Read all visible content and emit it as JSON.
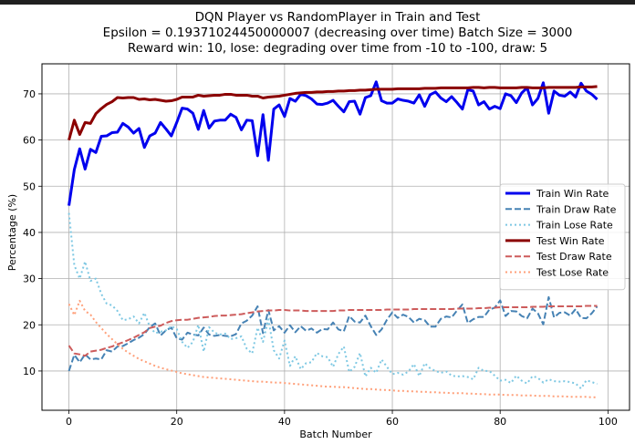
{
  "chart_data": {
    "type": "line",
    "title_lines": [
      "DQN Player vs RandomPlayer in Train and Test",
      "Epsilon = 0.19371024450000007 (decreasing over time) Batch Size = 3000",
      "Reward win: 10, lose: degrading over time from -10 to -100, draw: 5"
    ],
    "xlabel": "Batch Number",
    "ylabel": "Percentage (%)",
    "xlim": [
      -5,
      104
    ],
    "ylim": [
      1.5,
      76.5
    ],
    "xticks": [
      0,
      20,
      40,
      60,
      80,
      100
    ],
    "yticks": [
      10,
      20,
      30,
      40,
      50,
      60,
      70
    ],
    "grid": true,
    "legend_position": "center-right",
    "series": [
      {
        "name": "Train Win Rate",
        "color": "#0000ee",
        "style": "solid",
        "width": 3,
        "values": [
          45.8,
          53.6,
          58.1,
          53.7,
          58.0,
          57.3,
          60.8,
          60.9,
          61.6,
          61.7,
          63.6,
          62.8,
          61.5,
          62.5,
          58.4,
          60.9,
          61.5,
          63.8,
          62.4,
          60.9,
          63.8,
          66.9,
          66.7,
          65.8,
          62.3,
          66.4,
          62.6,
          64.1,
          64.3,
          64.3,
          65.6,
          64.9,
          62.2,
          64.3,
          64.2,
          56.6,
          65.5,
          55.6,
          66.7,
          67.6,
          65.1,
          69.0,
          68.4,
          69.9,
          69.6,
          68.9,
          67.8,
          67.7,
          68.0,
          68.6,
          67.3,
          66.1,
          68.3,
          68.4,
          65.6,
          69.2,
          69.6,
          72.6,
          68.5,
          68.0,
          68.0,
          68.9,
          68.6,
          68.4,
          68.0,
          69.8,
          67.3,
          69.8,
          70.4,
          69.1,
          68.3,
          69.4,
          68.1,
          66.7,
          70.9,
          70.6,
          67.6,
          68.3,
          66.7,
          67.3,
          66.8,
          70.0,
          69.6,
          68.1,
          70.2,
          71.3,
          67.6,
          69.0,
          72.4,
          65.8,
          70.6,
          69.7,
          69.5,
          70.4,
          69.3,
          72.3,
          70.6,
          69.9,
          68.8
        ]
      },
      {
        "name": "Train Draw Rate",
        "color": "#4682b4",
        "style": "dashed",
        "width": 2,
        "values": [
          10.0,
          13.5,
          11.9,
          13.6,
          12.5,
          12.7,
          12.5,
          14.5,
          14.2,
          15.3,
          15.4,
          16.0,
          16.7,
          17.2,
          18.0,
          19.5,
          20.3,
          17.7,
          18.8,
          19.4,
          17.1,
          16.8,
          18.3,
          17.9,
          17.7,
          19.4,
          17.9,
          17.6,
          17.8,
          17.6,
          17.5,
          18.0,
          20.3,
          20.9,
          22.0,
          24.0,
          18.2,
          23.2,
          18.8,
          19.7,
          18.3,
          19.9,
          18.4,
          19.7,
          18.7,
          19.2,
          18.3,
          19.1,
          19.0,
          20.5,
          19.0,
          18.6,
          21.9,
          20.7,
          20.5,
          22.0,
          19.7,
          17.8,
          19.0,
          21.1,
          22.7,
          21.5,
          22.2,
          21.7,
          20.5,
          21.3,
          21.0,
          19.6,
          19.6,
          21.3,
          21.8,
          21.6,
          23.1,
          24.4,
          20.4,
          21.2,
          21.7,
          21.7,
          23.3,
          23.7,
          25.3,
          21.9,
          23.0,
          22.9,
          21.9,
          21.4,
          23.5,
          22.5,
          20.1,
          26.0,
          21.6,
          22.6,
          22.7,
          22.0,
          23.4,
          21.5,
          21.4,
          22.5,
          24.0
        ]
      },
      {
        "name": "Train Lose Rate",
        "color": "#7ec8e3",
        "style": "dotted",
        "width": 2,
        "values": [
          44.2,
          32.9,
          30.0,
          33.7,
          29.5,
          30.0,
          26.7,
          24.6,
          24.2,
          23.0,
          21.0,
          21.2,
          21.8,
          20.3,
          22.6,
          19.6,
          18.2,
          18.5,
          18.8,
          19.7,
          19.1,
          16.3,
          15.0,
          16.3,
          20.0,
          14.2,
          19.5,
          18.3,
          17.9,
          18.1,
          16.9,
          17.1,
          17.5,
          14.8,
          13.8,
          19.4,
          16.3,
          21.2,
          14.5,
          12.7,
          16.6,
          11.1,
          13.2,
          10.4,
          11.7,
          11.9,
          13.9,
          13.2,
          13.0,
          10.9,
          13.7,
          15.3,
          9.8,
          10.9,
          13.9,
          8.8,
          10.7,
          9.6,
          12.5,
          10.9,
          9.3,
          9.6,
          9.2,
          9.9,
          11.5,
          8.9,
          11.7,
          10.6,
          10.0,
          9.6,
          9.9,
          9.0,
          8.8,
          8.9,
          8.7,
          8.2,
          10.7,
          10.0,
          10.0,
          9.0,
          7.9,
          8.1,
          7.4,
          9.0,
          7.9,
          7.3,
          8.9,
          8.5,
          7.5,
          8.2,
          7.8,
          7.7,
          7.8,
          7.6,
          7.3,
          6.2,
          8.0,
          7.6,
          7.2
        ]
      },
      {
        "name": "Test Win Rate",
        "color": "#8b0000",
        "style": "solid",
        "width": 3,
        "values": [
          60.0,
          64.3,
          61.2,
          63.8,
          63.6,
          65.7,
          66.8,
          67.7,
          68.3,
          69.2,
          69.1,
          69.2,
          69.2,
          68.8,
          68.9,
          68.7,
          68.8,
          68.6,
          68.4,
          68.5,
          68.8,
          69.3,
          69.3,
          69.3,
          69.7,
          69.5,
          69.6,
          69.7,
          69.7,
          69.9,
          69.9,
          69.7,
          69.7,
          69.7,
          69.5,
          69.5,
          69.1,
          69.3,
          69.4,
          69.5,
          69.7,
          69.9,
          70.1,
          70.2,
          70.3,
          70.3,
          70.4,
          70.4,
          70.5,
          70.5,
          70.6,
          70.6,
          70.7,
          70.7,
          70.8,
          70.8,
          70.9,
          71.0,
          71.0,
          71.0,
          71.0,
          71.1,
          71.1,
          71.1,
          71.1,
          71.1,
          71.2,
          71.2,
          71.2,
          71.3,
          71.3,
          71.3,
          71.3,
          71.3,
          71.3,
          71.4,
          71.4,
          71.3,
          71.4,
          71.4,
          71.3,
          71.3,
          71.3,
          71.3,
          71.4,
          71.4,
          71.3,
          71.3,
          71.3,
          71.4,
          71.4,
          71.4,
          71.4,
          71.4,
          71.4,
          71.5,
          71.5,
          71.5,
          71.6
        ]
      },
      {
        "name": "Test Draw Rate",
        "color": "#cd5c5c",
        "style": "dashed",
        "width": 2,
        "values": [
          15.5,
          13.8,
          13.6,
          13.3,
          14.2,
          14.4,
          14.6,
          15.0,
          15.3,
          15.8,
          16.2,
          16.7,
          17.2,
          17.8,
          18.4,
          19.3,
          19.6,
          19.8,
          20.4,
          20.8,
          21.0,
          21.1,
          21.1,
          21.3,
          21.5,
          21.6,
          21.7,
          21.9,
          22.0,
          22.0,
          22.1,
          22.2,
          22.3,
          22.5,
          22.7,
          22.9,
          23.0,
          23.1,
          23.1,
          23.2,
          23.2,
          23.1,
          23.1,
          23.1,
          23.0,
          23.0,
          23.0,
          23.0,
          23.0,
          23.0,
          23.1,
          23.1,
          23.2,
          23.2,
          23.2,
          23.2,
          23.2,
          23.2,
          23.2,
          23.3,
          23.3,
          23.3,
          23.3,
          23.3,
          23.4,
          23.4,
          23.4,
          23.4,
          23.4,
          23.4,
          23.4,
          23.4,
          23.5,
          23.5,
          23.5,
          23.5,
          23.6,
          23.6,
          23.7,
          23.7,
          23.8,
          23.8,
          23.8,
          23.8,
          23.8,
          23.8,
          23.9,
          23.9,
          23.9,
          24.0,
          24.0,
          24.0,
          24.0,
          24.0,
          24.0,
          24.0,
          24.1,
          24.1,
          24.1
        ]
      },
      {
        "name": "Test Lose Rate",
        "color": "#ffa07a",
        "style": "dotted",
        "width": 2,
        "values": [
          24.5,
          22.1,
          25.2,
          23.0,
          22.2,
          20.6,
          19.3,
          18.0,
          16.9,
          15.8,
          14.8,
          14.0,
          13.3,
          12.6,
          12.1,
          11.6,
          11.1,
          10.7,
          10.4,
          10.1,
          9.8,
          9.5,
          9.3,
          9.1,
          8.9,
          8.7,
          8.6,
          8.5,
          8.4,
          8.3,
          8.2,
          8.1,
          8.0,
          7.9,
          7.8,
          7.7,
          7.7,
          7.6,
          7.5,
          7.5,
          7.4,
          7.3,
          7.2,
          7.1,
          7.0,
          6.9,
          6.8,
          6.7,
          6.6,
          6.6,
          6.5,
          6.5,
          6.4,
          6.3,
          6.2,
          6.1,
          6.1,
          6.0,
          5.9,
          5.9,
          5.8,
          5.7,
          5.7,
          5.6,
          5.6,
          5.5,
          5.5,
          5.4,
          5.4,
          5.3,
          5.3,
          5.2,
          5.2,
          5.2,
          5.1,
          5.1,
          5.0,
          5.0,
          4.9,
          4.9,
          4.9,
          4.8,
          4.8,
          4.8,
          4.7,
          4.7,
          4.7,
          4.6,
          4.6,
          4.6,
          4.5,
          4.5,
          4.5,
          4.4,
          4.4,
          4.4,
          4.4,
          4.3,
          4.3
        ]
      }
    ]
  }
}
